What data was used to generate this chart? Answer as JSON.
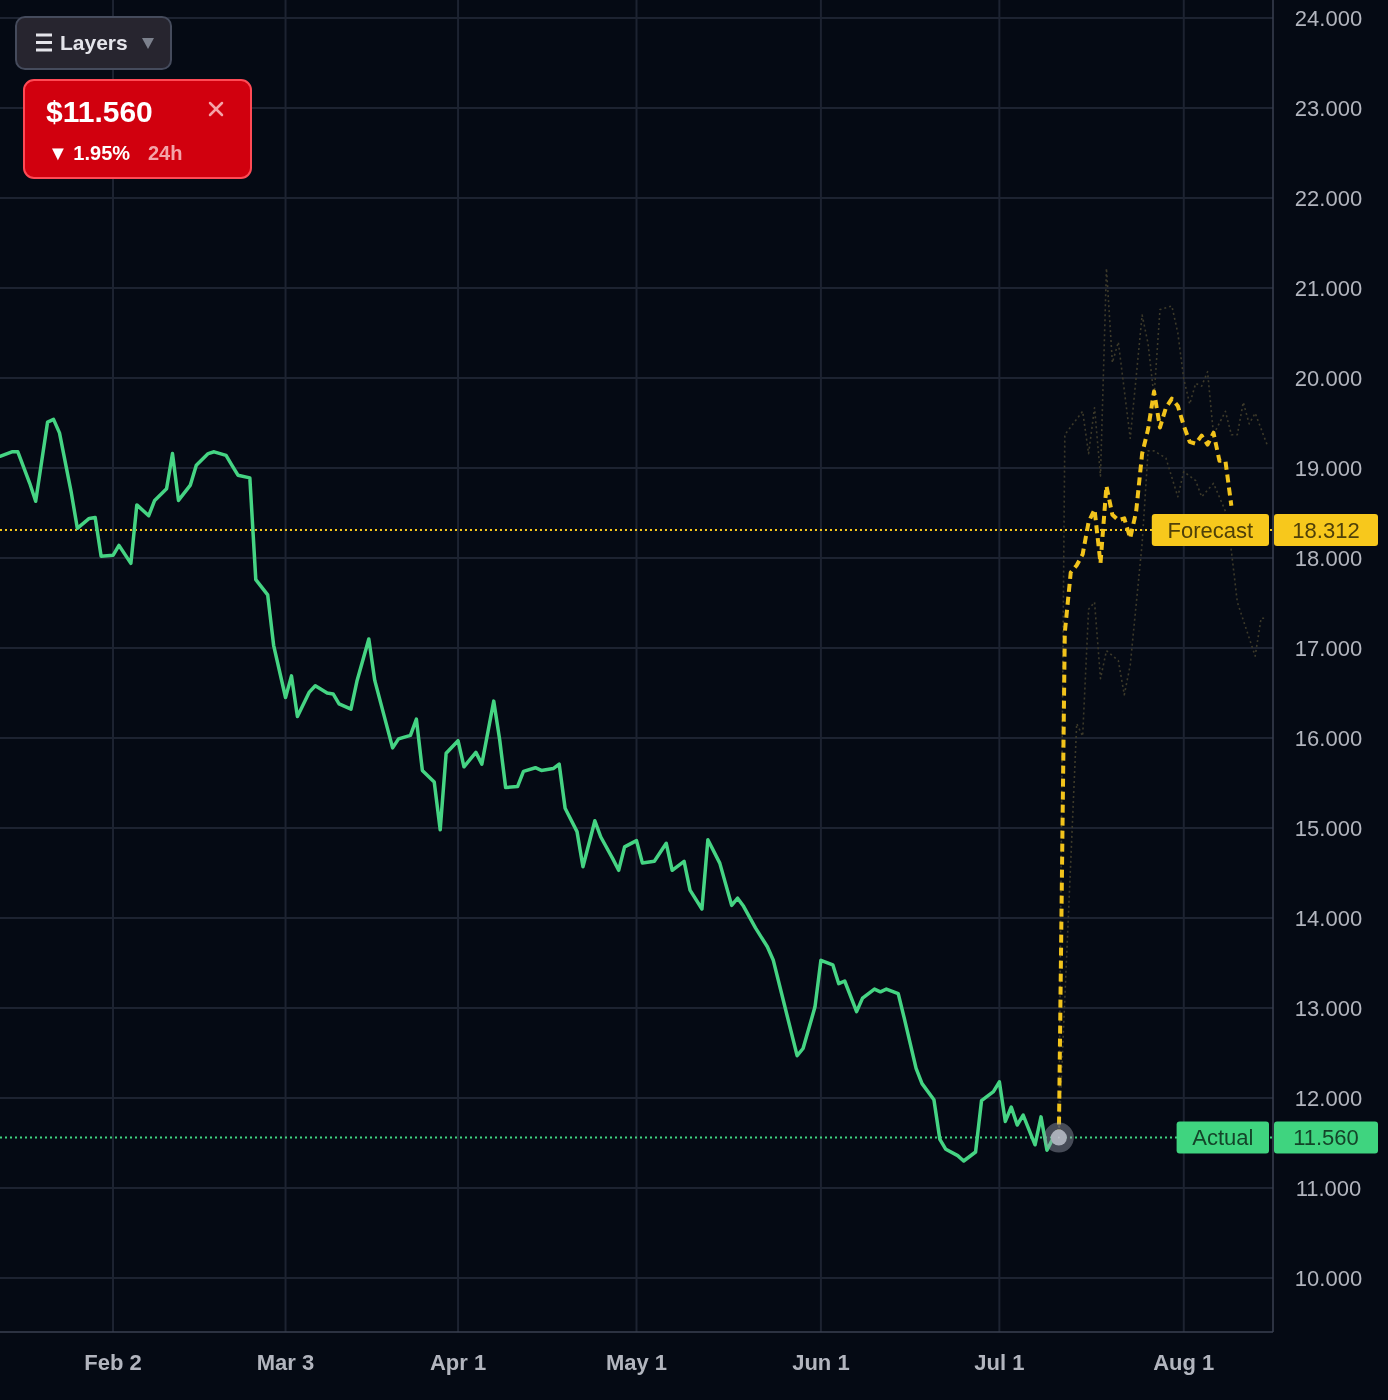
{
  "chart_data": {
    "type": "line",
    "grid": true,
    "xlim": [
      "--01-14",
      "--08-16"
    ],
    "xticks": [
      {
        "value": "--02-02",
        "label": "Feb 2"
      },
      {
        "value": "--03-03",
        "label": "Mar 3"
      },
      {
        "value": "--04-01",
        "label": "Apr 1"
      },
      {
        "value": "--05-01",
        "label": "May 1"
      },
      {
        "value": "--06-01",
        "label": "Jun 1"
      },
      {
        "value": "--07-01",
        "label": "Jul 1"
      },
      {
        "value": "--08-01",
        "label": "Aug 1"
      }
    ],
    "ylim": [
      9.4,
      24.2
    ],
    "yticks": [
      {
        "value": 10,
        "label": "10.000"
      },
      {
        "value": 11,
        "label": "11.000"
      },
      {
        "value": 12,
        "label": "12.000"
      },
      {
        "value": 13,
        "label": "13.000"
      },
      {
        "value": 14,
        "label": "14.000"
      },
      {
        "value": 15,
        "label": "15.000"
      },
      {
        "value": 16,
        "label": "16.000"
      },
      {
        "value": 17,
        "label": "17.000"
      },
      {
        "value": 18,
        "label": "18.000"
      },
      {
        "value": 19,
        "label": "19.000"
      },
      {
        "value": 20,
        "label": "20.000"
      },
      {
        "value": 21,
        "label": "21.000"
      },
      {
        "value": 22,
        "label": "22.000"
      },
      {
        "value": 23,
        "label": "23.000"
      },
      {
        "value": 24,
        "label": "24.000"
      }
    ],
    "series": [
      {
        "color": "#45d483",
        "line_style": "solid",
        "x": [
          "--01-14",
          "--01-16",
          "--01-17",
          "--01-19",
          "--01-20",
          "--01-22",
          "--01-23",
          "--01-24",
          "--01-26",
          "--01-27",
          "--01-29",
          "--01-30",
          "--01-31",
          "--02-02",
          "--02-03",
          "--02-05",
          "--02-06",
          "--02-08",
          "--02-09",
          "--02-11",
          "--02-12",
          "--02-13",
          "--02-15",
          "--02-16",
          "--02-18",
          "--02-19",
          "--02-21",
          "--02-22",
          "--02-23",
          "--02-25",
          "--02-26",
          "--02-28",
          "--03-01",
          "--03-03",
          "--03-04",
          "--03-05",
          "--03-07",
          "--03-08",
          "--03-10",
          "--03-11",
          "--03-12",
          "--03-14",
          "--03-15",
          "--03-17",
          "--03-18",
          "--03-19",
          "--03-21",
          "--03-22",
          "--03-24",
          "--03-25",
          "--03-26",
          "--03-28",
          "--03-29",
          "--03-30",
          "--04-01",
          "--04-02",
          "--04-04",
          "--04-05",
          "--04-07",
          "--04-08",
          "--04-09",
          "--04-11",
          "--04-12",
          "--04-14",
          "--04-15",
          "--04-17",
          "--04-18",
          "--04-19",
          "--04-21",
          "--04-22",
          "--04-24",
          "--04-25",
          "--04-27",
          "--04-28",
          "--04-29",
          "--05-01",
          "--05-02",
          "--05-04",
          "--05-06",
          "--05-07",
          "--05-09",
          "--05-10",
          "--05-12",
          "--05-13",
          "--05-15",
          "--05-17",
          "--05-18",
          "--05-19",
          "--05-21",
          "--05-23",
          "--05-24",
          "--05-26",
          "--05-28",
          "--05-29",
          "--05-31",
          "--06-01",
          "--06-03",
          "--06-04",
          "--06-05",
          "--06-07",
          "--06-08",
          "--06-10",
          "--06-11",
          "--06-12",
          "--06-14",
          "--06-15",
          "--06-17",
          "--06-18",
          "--06-20",
          "--06-21",
          "--06-22",
          "--06-24",
          "--06-25",
          "--06-27",
          "--06-28",
          "--06-30",
          "--07-01",
          "--07-02",
          "--07-03",
          "--07-04",
          "--07-05",
          "--07-07",
          "--07-08",
          "--07-09",
          "--07-10",
          "--07-11"
        ],
        "values": [
          19.13,
          19.18,
          19.18,
          18.83,
          18.63,
          19.51,
          19.54,
          19.39,
          18.72,
          18.33,
          18.44,
          18.45,
          18.02,
          18.03,
          18.14,
          17.94,
          18.59,
          18.47,
          18.64,
          18.77,
          19.16,
          18.64,
          18.81,
          19.03,
          19.16,
          19.18,
          19.14,
          19.03,
          18.92,
          18.89,
          17.76,
          17.59,
          17.03,
          16.45,
          16.69,
          16.24,
          16.51,
          16.58,
          16.5,
          16.49,
          16.38,
          16.32,
          16.63,
          17.1,
          16.64,
          16.39,
          15.89,
          15.99,
          16.03,
          16.21,
          15.64,
          15.51,
          14.98,
          15.83,
          15.97,
          15.68,
          15.84,
          15.71,
          16.41,
          15.98,
          15.45,
          15.46,
          15.63,
          15.67,
          15.64,
          15.66,
          15.71,
          15.22,
          14.96,
          14.57,
          15.08,
          14.9,
          14.66,
          14.53,
          14.79,
          14.86,
          14.61,
          14.63,
          14.83,
          14.53,
          14.63,
          14.31,
          14.1,
          14.87,
          14.61,
          14.14,
          14.22,
          14.13,
          13.89,
          13.68,
          13.53,
          13.0,
          12.47,
          12.55,
          13.01,
          13.53,
          13.48,
          13.27,
          13.3,
          12.96,
          13.11,
          13.21,
          13.18,
          13.21,
          13.16,
          12.89,
          12.33,
          12.16,
          11.98,
          11.54,
          11.43,
          11.36,
          11.3,
          11.4,
          11.97,
          12.07,
          12.18,
          11.74,
          11.9,
          11.7,
          11.81,
          11.48,
          11.79,
          11.42,
          11.55,
          11.56
        ]
      },
      {
        "color": "#3d3a2a",
        "line_style": "dotted",
        "x": [
          "--07-11",
          "--07-12",
          "--07-15",
          "--07-16",
          "--07-17",
          "--07-18",
          "--07-19",
          "--07-20",
          "--07-21",
          "--07-23",
          "--07-25",
          "--07-26",
          "--07-27",
          "--07-28",
          "--07-30",
          "--07-31",
          "--08-01",
          "--08-02",
          "--08-03",
          "--08-04",
          "--08-05",
          "--08-06",
          "--08-08",
          "--08-09",
          "--08-10",
          "--08-11",
          "--08-12",
          "--08-13",
          "--08-15"
        ],
        "values": [
          11.56,
          19.37,
          19.63,
          19.16,
          19.67,
          18.91,
          21.22,
          20.17,
          20.4,
          19.33,
          20.7,
          20.38,
          19.79,
          20.76,
          20.8,
          20.5,
          19.99,
          19.71,
          19.94,
          19.91,
          20.07,
          19.37,
          19.63,
          19.37,
          19.37,
          19.73,
          19.49,
          19.61,
          19.26
        ]
      },
      {
        "color": "#3d3a2a",
        "line_style": "dotted",
        "x": [
          "--07-11",
          "--07-14",
          "--07-15",
          "--07-16",
          "--07-17",
          "--07-18",
          "--07-19",
          "--07-21",
          "--07-22",
          "--07-23",
          "--07-25",
          "--07-26",
          "--07-27",
          "--07-29",
          "--07-31",
          "--08-01",
          "--08-03",
          "--08-04",
          "--08-06",
          "--08-08",
          "--08-09",
          "--08-10",
          "--08-13",
          "--08-14",
          "--08-15"
        ],
        "values": [
          11.56,
          16.16,
          16.02,
          17.43,
          17.51,
          16.66,
          16.97,
          16.86,
          16.48,
          16.81,
          18.16,
          19.19,
          19.19,
          19.11,
          18.68,
          18.96,
          18.86,
          18.68,
          18.83,
          18.52,
          18.08,
          17.51,
          16.91,
          17.33,
          17.33
        ]
      },
      {
        "color": "#f2c31b",
        "line_style": "dashed",
        "x": [
          "--07-11",
          "--07-12",
          "--07-13",
          "--07-14",
          "--07-15",
          "--07-16",
          "--07-17",
          "--07-18",
          "--07-19",
          "--07-20",
          "--07-21",
          "--07-22",
          "--07-23",
          "--07-24",
          "--07-25",
          "--07-26",
          "--07-27",
          "--07-28",
          "--07-29",
          "--07-30",
          "--07-31",
          "--08-01",
          "--08-02",
          "--08-03",
          "--08-04",
          "--08-05",
          "--08-06",
          "--08-07",
          "--08-08",
          "--08-09"
        ],
        "values": [
          11.56,
          17.17,
          17.84,
          17.92,
          18.04,
          18.4,
          18.54,
          17.94,
          18.8,
          18.48,
          18.42,
          18.44,
          18.22,
          18.52,
          19.16,
          19.43,
          19.85,
          19.45,
          19.67,
          19.77,
          19.69,
          19.47,
          19.29,
          19.27,
          19.36,
          19.26,
          19.39,
          19.08,
          19.08,
          18.58
        ]
      },
      {
        "type": "scatter",
        "marker": "circle",
        "color": "#b9bdc7",
        "x": [
          "--07-11"
        ],
        "values": [
          11.56
        ]
      }
    ],
    "ref_lines": [
      {
        "axis": "y",
        "value": 18.312,
        "label": "Forecast",
        "color": "#f7c81c",
        "line_style": "dotted"
      },
      {
        "axis": "y",
        "value": 11.56,
        "label": "Actual",
        "color": "#3fd47f",
        "line_style": "dotted"
      }
    ],
    "annotations": [
      "18.312",
      "11.560",
      "Layers",
      "$11.560",
      "▼ 1.95%",
      "24h"
    ]
  }
}
